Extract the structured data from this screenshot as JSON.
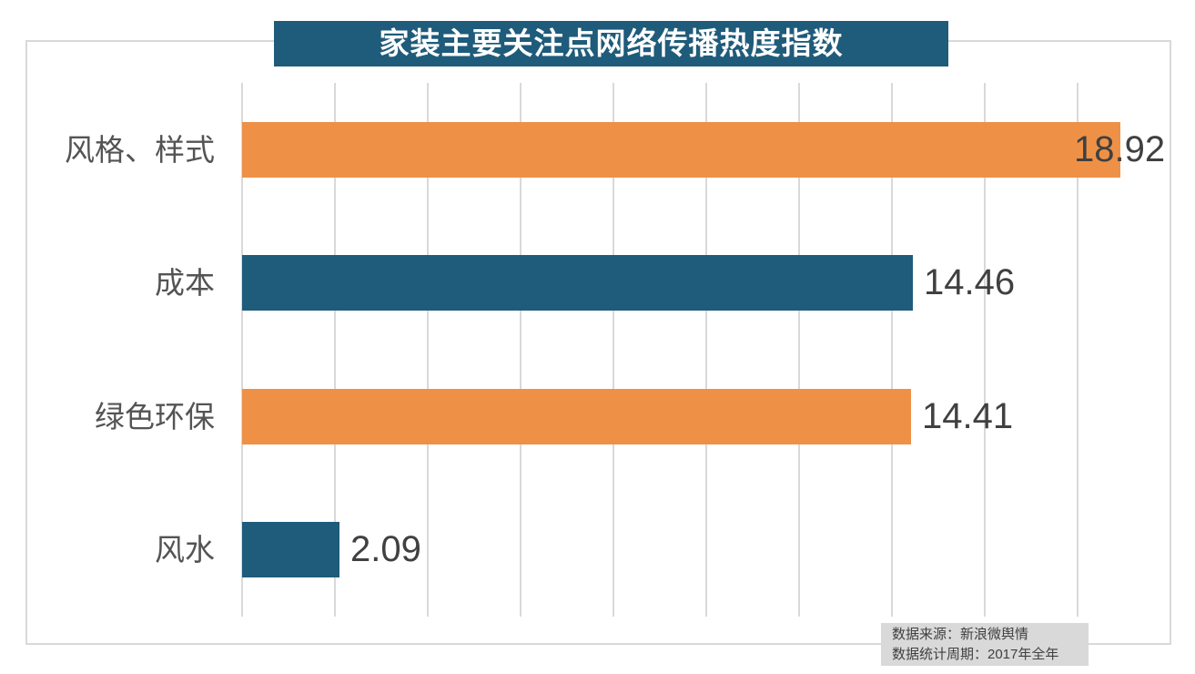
{
  "title": "家装主要关注点网络传播热度指数",
  "source_note": {
    "line1": "数据来源：新浪微舆情",
    "line2": "数据统计周期：2017年全年"
  },
  "colors": {
    "orange": "#EE9146",
    "teal": "#1F5B7A",
    "title_bg": "#1F5B7A",
    "title_text": "#FFFFFF",
    "gridline": "#D9D9D9",
    "frame_border": "#D9D9D9",
    "category_text": "#545454",
    "value_text": "#404040",
    "source_bg": "#D9D9D9",
    "source_text": "#404040",
    "background": "#FFFFFF"
  },
  "chart_data": {
    "type": "bar",
    "orientation": "horizontal",
    "title": "家装主要关注点网络传播热度指数",
    "categories": [
      "风格、样式",
      "成本",
      "绿色环保",
      "风水"
    ],
    "values": [
      18.92,
      14.46,
      14.41,
      2.09
    ],
    "value_labels": [
      "18.92",
      "14.46",
      "14.41",
      "2.09"
    ],
    "bar_colors": [
      "#EE9146",
      "#1F5B7A",
      "#EE9146",
      "#1F5B7A"
    ],
    "xlim": [
      0,
      20
    ],
    "gridline_step": 2,
    "gridlines": "vertical",
    "axis_tick_labels": "none",
    "legend": "none",
    "value_label_position": "outside-end"
  }
}
